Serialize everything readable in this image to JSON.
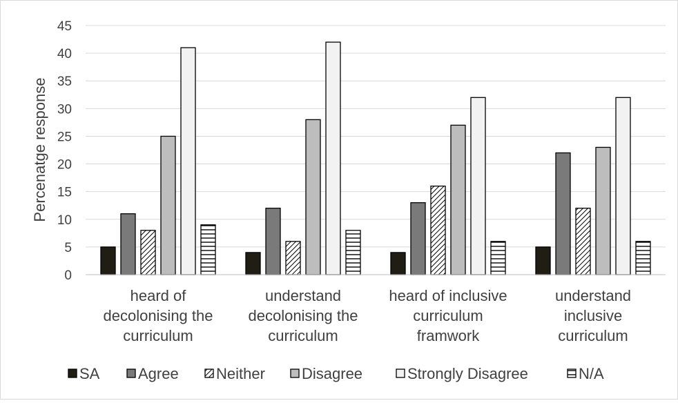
{
  "chart_data": {
    "type": "bar",
    "title": "",
    "xlabel": "",
    "ylabel": "Percenatge response",
    "ylim": [
      0,
      45
    ],
    "yticks": [
      0,
      5,
      10,
      15,
      20,
      25,
      30,
      35,
      40,
      45
    ],
    "grid": true,
    "legend_position": "bottom",
    "categories": [
      [
        "heard of",
        "decolonising the",
        "curriculum"
      ],
      [
        "understand",
        "decolonising the",
        "curriculum"
      ],
      [
        "heard of inclusive",
        "curriculum",
        "framwork"
      ],
      [
        "understand",
        "inclusive",
        "curriculum"
      ]
    ],
    "series": [
      {
        "name": "SA",
        "values": [
          5,
          4,
          4,
          5
        ],
        "fill": "#1f1d14",
        "pattern": "solid"
      },
      {
        "name": "Agree",
        "values": [
          11,
          12,
          13,
          22
        ],
        "fill": "#7a7a7a",
        "pattern": "solid"
      },
      {
        "name": "Neither",
        "values": [
          8,
          6,
          16,
          12
        ],
        "fill": "#ffffff",
        "pattern": "diagonal-hatch"
      },
      {
        "name": "Disagree",
        "values": [
          25,
          28,
          27,
          23
        ],
        "fill": "#bdbdbd",
        "pattern": "solid"
      },
      {
        "name": "Strongly Disagree",
        "values": [
          41,
          42,
          32,
          32
        ],
        "fill": "#f2f2f2",
        "pattern": "solid"
      },
      {
        "name": "N/A",
        "values": [
          9,
          8,
          6,
          6
        ],
        "fill": "#ffffff",
        "pattern": "horizontal-lines"
      }
    ],
    "colors": {
      "gridline": "#d9d9d9",
      "axis_text": "#404040",
      "bar_outline": "#000000"
    }
  }
}
